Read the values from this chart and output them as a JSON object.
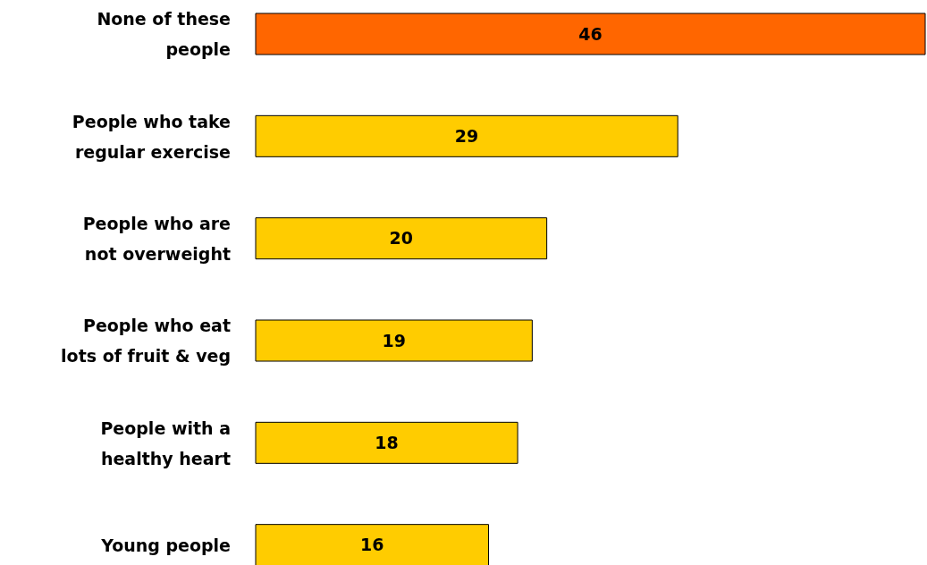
{
  "chart_data": {
    "type": "bar",
    "orientation": "horizontal",
    "data_labels": true,
    "categories": [
      "None of these people",
      "People who take regular exercise",
      "People who are not overweight",
      "People who eat lots of fruit & veg",
      "People with a healthy heart",
      "Young people"
    ],
    "values": [
      46,
      29,
      20,
      19,
      18,
      16
    ],
    "colors": [
      "#ff6600",
      "#ffcc00",
      "#ffcc00",
      "#ffcc00",
      "#ffcc00",
      "#ffcc00"
    ]
  }
}
